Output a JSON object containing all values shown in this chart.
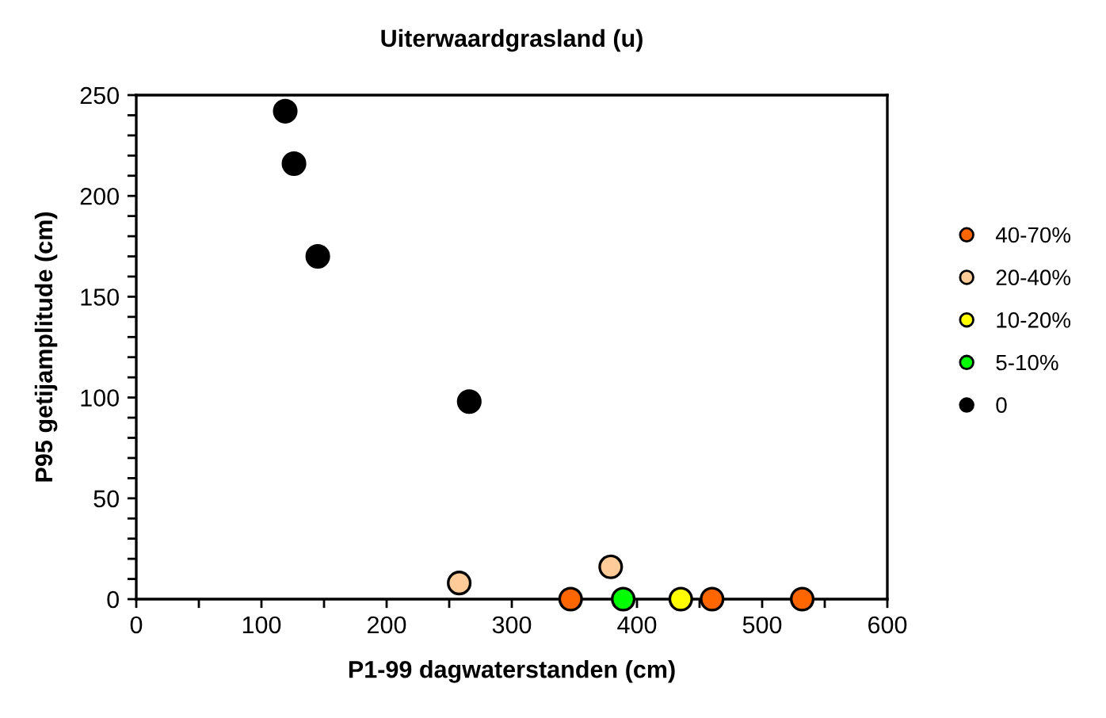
{
  "chart_data": {
    "type": "scatter",
    "title": "Uiterwaardgrasland (u)",
    "xlabel": "P1-99 dagwaterstanden (cm)",
    "ylabel": "P95 getijamplitude (cm)",
    "xlim": [
      0,
      600
    ],
    "ylim": [
      0,
      250
    ],
    "xticks": [
      0,
      {
        "value": 50,
        "label": null
      },
      100,
      {
        "value": 150,
        "label": null
      },
      200,
      {
        "value": 250,
        "label": null
      },
      300,
      {
        "value": 350,
        "label": null
      },
      400,
      {
        "value": 450,
        "label": null
      },
      500,
      {
        "value": 550,
        "label": null
      },
      600
    ],
    "yticks": [
      0,
      {
        "value": 10,
        "label": null
      },
      {
        "value": 20,
        "label": null
      },
      {
        "value": 30,
        "label": null
      },
      {
        "value": 40,
        "label": null
      },
      50,
      {
        "value": 60,
        "label": null
      },
      {
        "value": 70,
        "label": null
      },
      {
        "value": 80,
        "label": null
      },
      {
        "value": 90,
        "label": null
      },
      100,
      {
        "value": 110,
        "label": null
      },
      {
        "value": 120,
        "label": null
      },
      {
        "value": 130,
        "label": null
      },
      {
        "value": 140,
        "label": null
      },
      150,
      {
        "value": 160,
        "label": null
      },
      {
        "value": 170,
        "label": null
      },
      {
        "value": 180,
        "label": null
      },
      {
        "value": 190,
        "label": null
      },
      200,
      {
        "value": 210,
        "label": null
      },
      {
        "value": 220,
        "label": null
      },
      {
        "value": 230,
        "label": null
      },
      {
        "value": 240,
        "label": null
      },
      250
    ],
    "grid": false,
    "legend": "right",
    "marker": "circle",
    "series": [
      {
        "name": "40-70%",
        "color": "#ff6600",
        "x": [
          347,
          460,
          532
        ],
        "values": [
          0,
          0,
          0
        ]
      },
      {
        "name": "20-40%",
        "color": "#ffcc99",
        "x": [
          258,
          379
        ],
        "values": [
          8,
          16
        ]
      },
      {
        "name": "10-20%",
        "color": "#ffff00",
        "x": [
          435
        ],
        "values": [
          0
        ]
      },
      {
        "name": "5-10%",
        "color": "#00ff00",
        "x": [
          389
        ],
        "values": [
          0
        ]
      },
      {
        "name": "0",
        "color": "#000000",
        "x": [
          119,
          126,
          145,
          266
        ],
        "values": [
          242,
          216,
          170,
          98
        ]
      }
    ]
  }
}
